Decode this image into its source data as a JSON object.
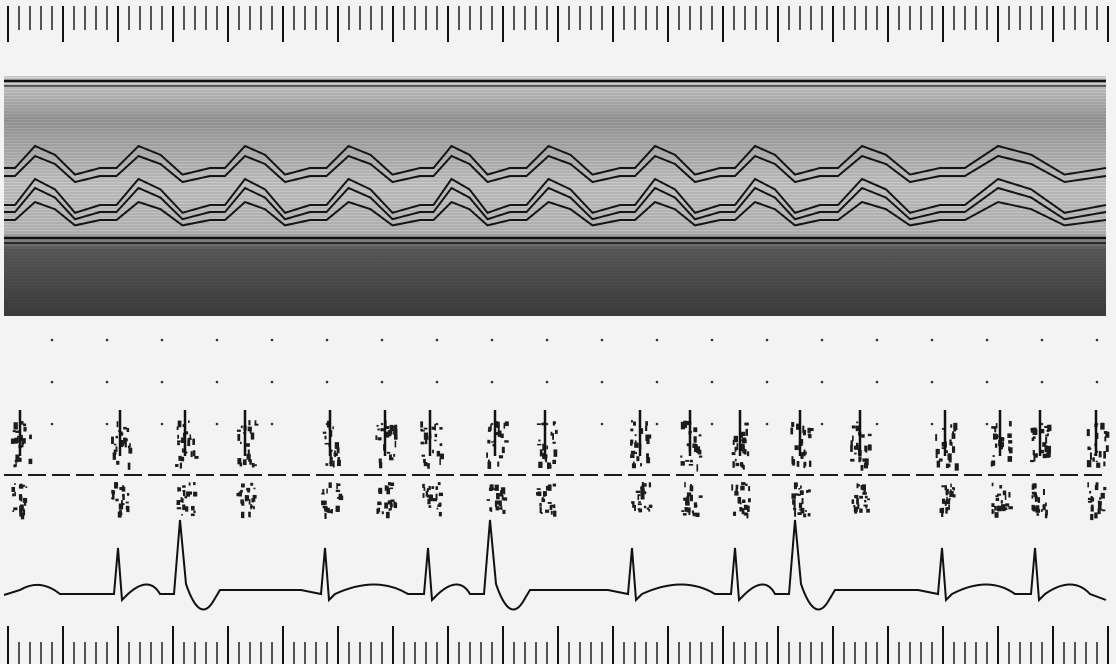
{
  "image": {
    "kind": "M-mode echocardiogram strip with Doppler and ECG traces",
    "visible_text": []
  },
  "colors": {
    "paper": "#f3f3f3",
    "ink": "#141414",
    "echo_band_light": "#b8b8b8",
    "echo_band_dark": "#3a3a3a",
    "doppler_ink": "#1c1c1c"
  },
  "cardiac_cycles": 10,
  "ecg": {
    "beats": 10,
    "premature_beats": 3
  }
}
